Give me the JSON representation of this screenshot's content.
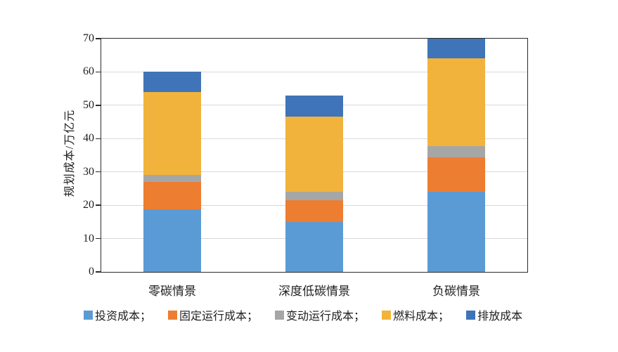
{
  "figure": {
    "background": "#ffffff",
    "axis_color": "#2b2b2b",
    "grid_color": "#d9d9d9"
  },
  "chart_data": {
    "type": "bar",
    "stacked": true,
    "title": "",
    "xlabel": "",
    "ylabel": "规划成本/万亿元",
    "categories": [
      "零碳情景",
      "深度低碳情景",
      "负碳情景"
    ],
    "series": [
      {
        "name": "投资成本",
        "legend_label": "投资成本；",
        "color": "#5B9BD5",
        "values": [
          18.7,
          15.0,
          24.0
        ]
      },
      {
        "name": "固定运行成本",
        "legend_label": "固定运行成本；",
        "color": "#ED7D31",
        "values": [
          8.3,
          6.5,
          10.4
        ]
      },
      {
        "name": "变动运行成本",
        "legend_label": "变动运行成本；",
        "color": "#A6A6A6",
        "values": [
          2.0,
          2.5,
          3.4
        ]
      },
      {
        "name": "燃料成本",
        "legend_label": "燃料成本；",
        "color": "#F2B33C",
        "values": [
          25.0,
          22.5,
          26.2
        ]
      },
      {
        "name": "排放成本",
        "legend_label": "排放成本",
        "color": "#3F74B8",
        "values": [
          6.0,
          6.5,
          6.0
        ]
      }
    ],
    "stack_totals": [
      60,
      53,
      70
    ],
    "ylim": [
      0,
      70
    ],
    "yticks": [
      0,
      10,
      20,
      30,
      40,
      50,
      60,
      70
    ],
    "grid": "horizontal",
    "legend_position": "bottom"
  }
}
